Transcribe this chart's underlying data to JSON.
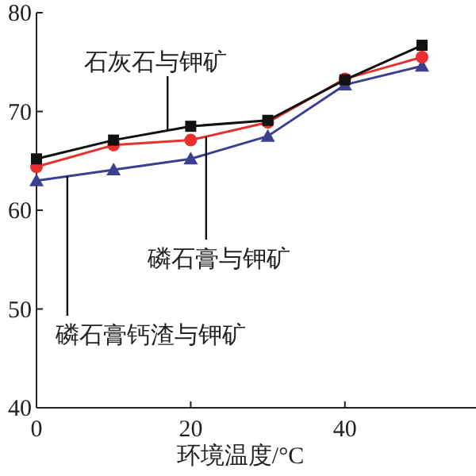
{
  "chart_data": {
    "type": "line",
    "xlabel": "环境温度/°C",
    "x": [
      0,
      10,
      20,
      30,
      40,
      50
    ],
    "xlim": [
      0,
      57
    ],
    "xticks": [
      0,
      20,
      40
    ],
    "ylim": [
      40,
      80
    ],
    "yticks": [
      40,
      50,
      60,
      70,
      80
    ],
    "grid": false,
    "legend": false,
    "line_style": "solid",
    "series": [
      {
        "name": "石灰石与钾矿",
        "color": "#111111",
        "marker": "square",
        "values": [
          65.2,
          67.1,
          68.5,
          69.1,
          73.2,
          76.7
        ]
      },
      {
        "name": "磷石膏与钾矿",
        "color": "#e8312f",
        "marker": "circle",
        "values": [
          64.4,
          66.6,
          67.1,
          68.9,
          73.3,
          75.5
        ]
      },
      {
        "name": "磷石膏钙渣与钾矿",
        "color": "#3b3f8f",
        "marker": "triangle",
        "values": [
          63.0,
          64.1,
          65.2,
          67.5,
          72.7,
          74.6
        ]
      }
    ]
  }
}
